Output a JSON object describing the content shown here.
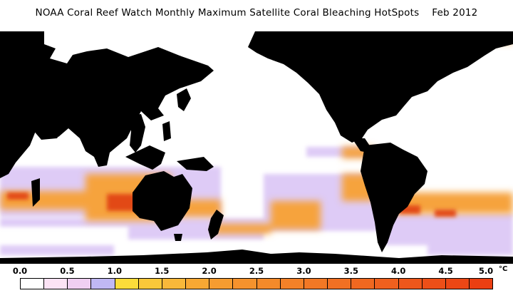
{
  "title": "NOAA Coral Reef Watch Monthly Maximum Satellite Coral Bleaching HotSpots    Feb 2012",
  "map": {
    "projection": "equirectangular, Pacific-centered",
    "variable": "Coral Bleaching HotSpots",
    "period": "Feb 2012",
    "colors": {
      "land": "#000000",
      "ocean": "#ffffff",
      "hotspot_low": "#d9c3f5",
      "hotspot_mid": "#f6a33c",
      "hotspot_high": "#e24a16"
    }
  },
  "colorbar": {
    "unit": "°C",
    "tick_labels": [
      "0.0",
      "0.5",
      "1.0",
      "1.5",
      "2.0",
      "2.5",
      "3.0",
      "3.5",
      "4.0",
      "4.5",
      "5.0"
    ],
    "min": 0,
    "max": 5,
    "step": 0.25,
    "colors": [
      "#ffffff",
      "#fce3f5",
      "#f0cff2",
      "#c0b8f4",
      "#fbdc3a",
      "#fac83a",
      "#f8b83a",
      "#f7a833",
      "#f69c30",
      "#f5922d",
      "#f48a2a",
      "#f38128",
      "#f27825",
      "#f17023",
      "#f06820",
      "#ef601e",
      "#ee571b",
      "#ed4f18",
      "#ec4715",
      "#eb3f12"
    ]
  }
}
